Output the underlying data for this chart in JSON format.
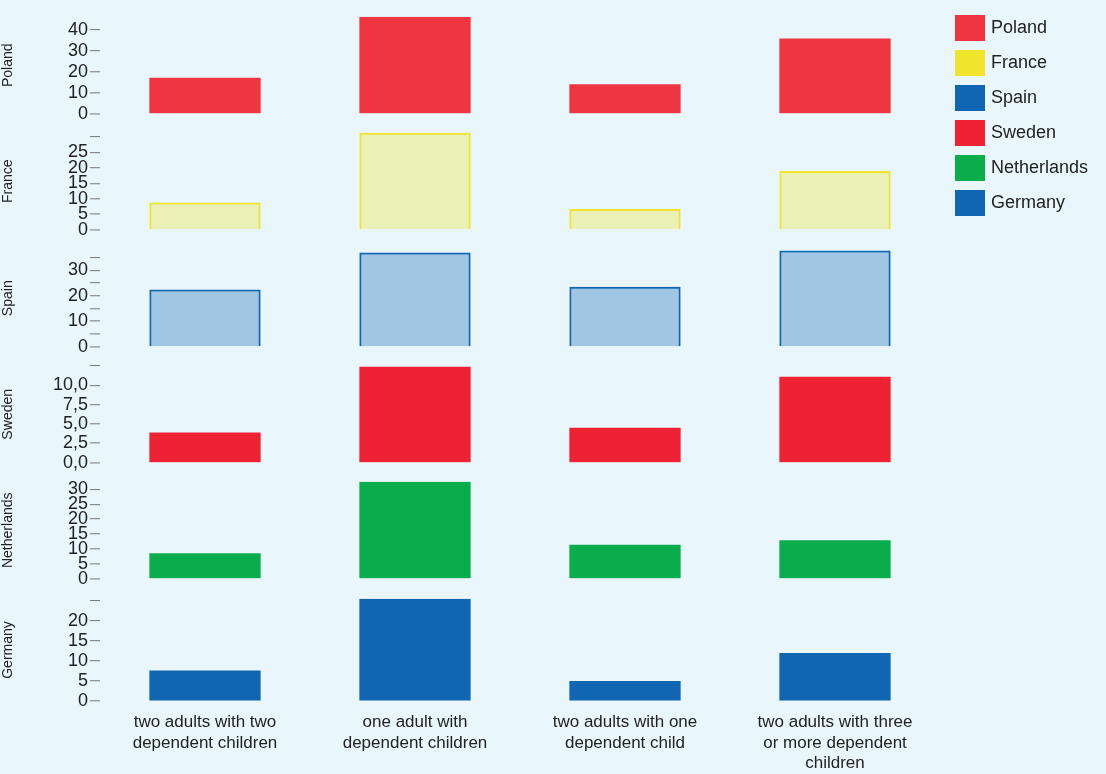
{
  "chart_data": [
    {
      "type": "bar",
      "ylabel": "Poland",
      "categories": [
        null,
        null,
        null,
        null
      ],
      "series": [
        {
          "name": "Poland",
          "color": "#ef3640",
          "values": [
            17.2,
            46.3,
            14.1,
            35.9
          ]
        }
      ],
      "ylim": [
        0,
        46.3
      ],
      "yticks": [
        0,
        10,
        20,
        30,
        40
      ],
      "tick_labels": "y",
      "legend": "right"
    },
    {
      "type": "bar",
      "ylabel": "France",
      "categories": [
        null,
        null,
        null,
        null
      ],
      "series": [
        {
          "name": "France",
          "color": "#f0e52a",
          "values": [
            8.8,
            31.3,
            6.7,
            19
          ]
        }
      ],
      "ylim": [
        0,
        31.3
      ],
      "yticks": [
        0,
        5,
        10,
        15,
        20,
        25,
        {
          "value": 30,
          "label": null
        }
      ],
      "tick_labels": "y",
      "legend": "right"
    },
    {
      "type": "bar",
      "ylabel": "Spain",
      "categories": [
        null,
        null,
        null,
        null
      ],
      "series": [
        {
          "name": "Spain",
          "color": "#1166b3",
          "values": [
            22.4,
            37,
            23.5,
            37.7
          ]
        }
      ],
      "ylim": [
        0,
        38
      ],
      "yticks": [
        0,
        {
          "value": 5,
          "label": null
        },
        10,
        {
          "value": 15,
          "label": null
        },
        20,
        {
          "value": 25,
          "label": null
        },
        30,
        {
          "value": 35,
          "label": null
        }
      ],
      "tick_labels": "y",
      "legend": "right"
    },
    {
      "type": "bar",
      "ylabel": "Sweden",
      "categories": [
        null,
        null,
        null,
        null
      ],
      "series": [
        {
          "name": "Sweden",
          "color": "#ee2233",
          "values": [
            3.9,
            12.4,
            4.5,
            11.1
          ]
        }
      ],
      "ylim": [
        0,
        12.5
      ],
      "yticks": [
        {
          "value": 0,
          "label": "0,0"
        },
        {
          "value": 2.5,
          "label": "2,5"
        },
        {
          "value": 5,
          "label": "5,0"
        },
        {
          "value": 7.5,
          "label": "7,5"
        },
        {
          "value": 10,
          "label": "10,0"
        },
        {
          "value": 12.5,
          "label": null
        }
      ],
      "tick_labels": "y",
      "legend": "right"
    },
    {
      "type": "bar",
      "ylabel": "Netherlands",
      "categories": [
        null,
        null,
        null,
        null
      ],
      "series": [
        {
          "name": "Netherlands",
          "color": "#0aad4c",
          "values": [
            8.5,
            32.5,
            11.4,
            12.9
          ]
        }
      ],
      "ylim": [
        0,
        32.5
      ],
      "yticks": [
        0,
        5,
        10,
        15,
        20,
        25,
        30
      ],
      "tick_labels": "y",
      "legend": "right"
    },
    {
      "type": "bar",
      "ylabel": "Germany",
      "categories": [
        "two adults with two dependent children",
        "one adult with dependent children",
        "two adults with one dependent child",
        "two adults with three or more dependent children"
      ],
      "series": [
        {
          "name": "Germany",
          "color": "#1166b3",
          "values": [
            7.6,
            25.5,
            5,
            12
          ]
        }
      ],
      "ylim": [
        0,
        25.5
      ],
      "yticks": [
        0,
        5,
        10,
        15,
        20,
        {
          "value": 25,
          "label": null
        }
      ],
      "legend": "right"
    }
  ]
}
